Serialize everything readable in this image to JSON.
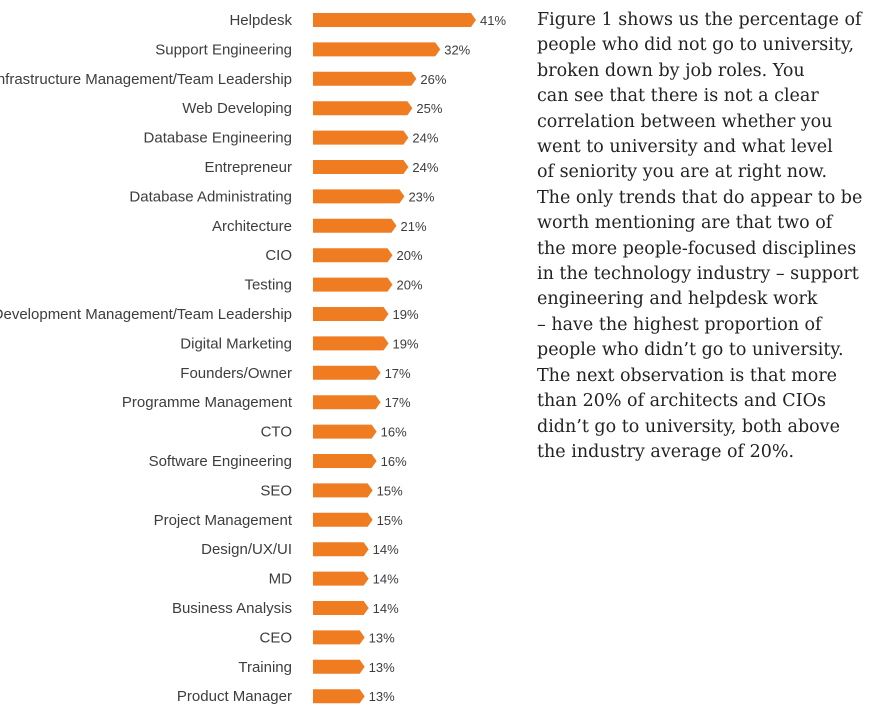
{
  "chart_data": {
    "type": "bar",
    "orientation": "horizontal",
    "categories": [
      "Helpdesk",
      "Support Engineering",
      "Infrastructure Management/Team Leadership",
      "Web Developing",
      "Database Engineering",
      "Entrepreneur",
      "Database Administrating",
      "Architecture",
      "CIO",
      "Testing",
      "Development Management/Team Leadership",
      "Digital Marketing",
      "Founders/Owner",
      "Programme Management",
      "CTO",
      "Software Engineering",
      "SEO",
      "Project Management",
      "Design/UX/UI",
      "MD",
      "Business Analysis",
      "CEO",
      "Training",
      "Product Manager"
    ],
    "values": [
      41,
      32,
      26,
      25,
      24,
      24,
      23,
      21,
      20,
      20,
      19,
      19,
      17,
      17,
      16,
      16,
      15,
      15,
      14,
      14,
      14,
      13,
      13,
      13
    ],
    "value_suffix": "%",
    "xlim": [
      0,
      41
    ],
    "grid": false,
    "bar_color": "#f07c22"
  },
  "description": {
    "lines": [
      "Figure 1 shows us the percentage of",
      "people who did not go to university,",
      "broken down by job roles. You",
      "can see that there is not a clear",
      "correlation between whether you",
      "went to university and what level",
      "of seniority you are at right now.",
      "The only trends that do appear to be",
      "worth mentioning are that two of",
      "the more people-focused disciplines",
      "in the technology industry – support",
      "engineering and helpdesk work",
      "– have the highest proportion of",
      "people who didn’t go to university.",
      "The next observation is that more",
      "than 20% of architects and CIOs",
      "didn’t go to university, both above",
      "the industry average of 20%."
    ]
  }
}
